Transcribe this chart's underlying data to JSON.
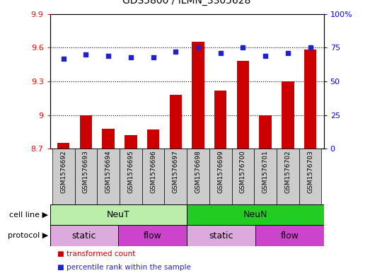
{
  "title": "GDS5800 / ILMN_3305628",
  "samples": [
    "GSM1576692",
    "GSM1576693",
    "GSM1576694",
    "GSM1576695",
    "GSM1576696",
    "GSM1576697",
    "GSM1576698",
    "GSM1576699",
    "GSM1576700",
    "GSM1576701",
    "GSM1576702",
    "GSM1576703"
  ],
  "bar_values": [
    8.75,
    9.0,
    8.88,
    8.82,
    8.87,
    9.18,
    9.65,
    9.22,
    9.48,
    9.0,
    9.3,
    9.58
  ],
  "dot_values": [
    67,
    70,
    69,
    68,
    68,
    72,
    75,
    71,
    75,
    69,
    71,
    75
  ],
  "ylim_left": [
    8.7,
    9.9
  ],
  "ylim_right": [
    0,
    100
  ],
  "yticks_left": [
    8.7,
    9.0,
    9.3,
    9.6,
    9.9
  ],
  "ytick_labels_left": [
    "8.7",
    "9",
    "9.3",
    "9.6",
    "9.9"
  ],
  "yticks_right": [
    0,
    25,
    50,
    75,
    100
  ],
  "ytick_labels_right": [
    "0",
    "25",
    "50",
    "75",
    "100%"
  ],
  "bar_color": "#cc0000",
  "dot_color": "#2222cc",
  "cell_line_labels": [
    {
      "label": "NeuT",
      "start": 0,
      "end": 6,
      "color": "#bbeeaa"
    },
    {
      "label": "NeuN",
      "start": 6,
      "end": 12,
      "color": "#22cc22"
    }
  ],
  "protocol_labels": [
    {
      "label": "static",
      "start": 0,
      "end": 3,
      "color": "#ddaadd"
    },
    {
      "label": "flow",
      "start": 3,
      "end": 6,
      "color": "#cc44cc"
    },
    {
      "label": "static",
      "start": 6,
      "end": 9,
      "color": "#ddaadd"
    },
    {
      "label": "flow",
      "start": 9,
      "end": 12,
      "color": "#cc44cc"
    }
  ],
  "legend_items": [
    {
      "label": "transformed count",
      "color": "#cc0000"
    },
    {
      "label": "percentile rank within the sample",
      "color": "#2222cc"
    }
  ],
  "cell_line_row_label": "cell line",
  "protocol_row_label": "protocol",
  "sample_bg_color": "#cccccc",
  "plot_bg": "#ffffff"
}
